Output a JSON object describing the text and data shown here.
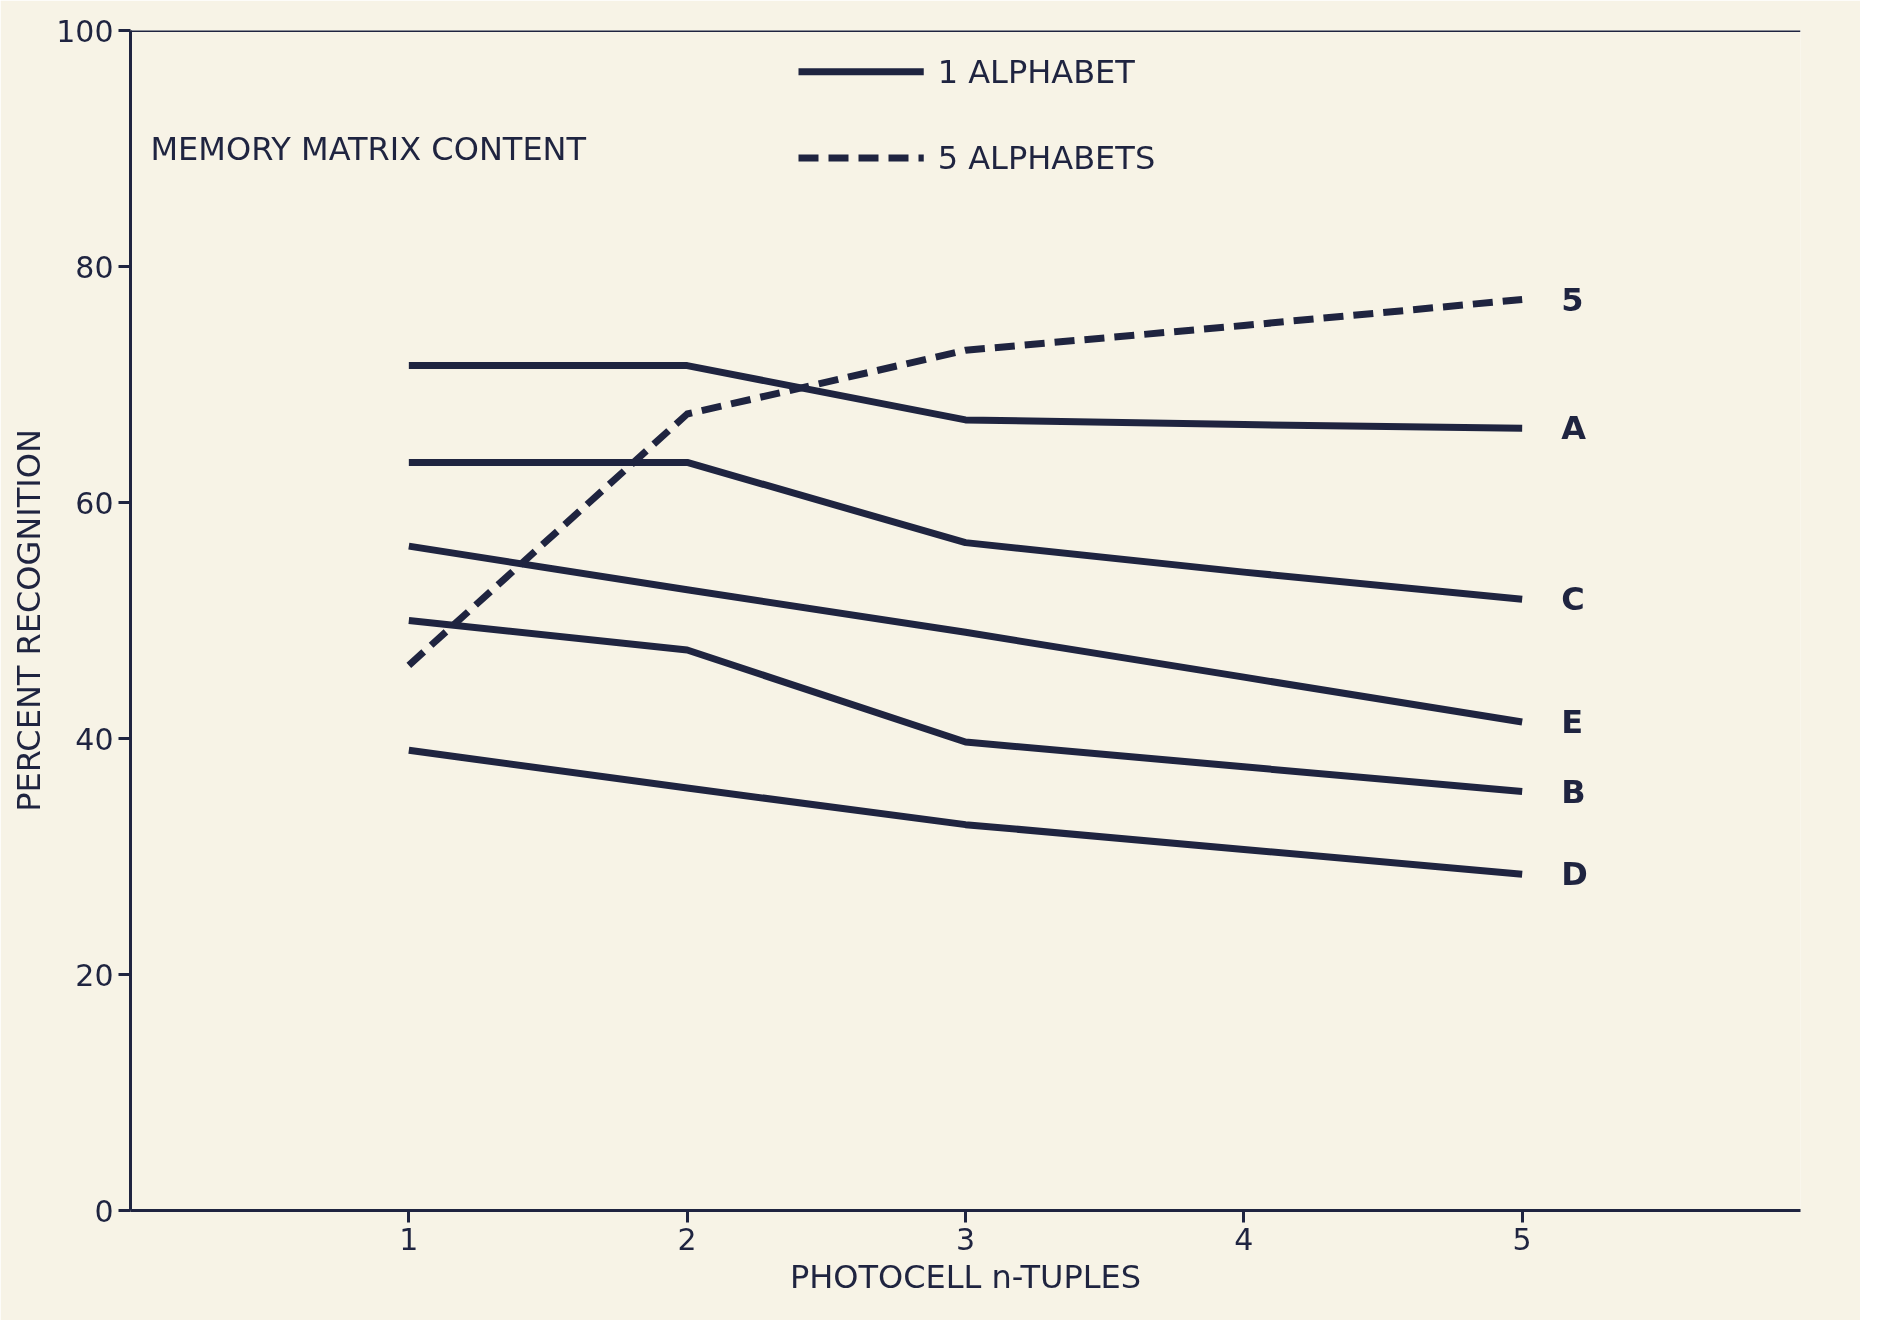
{
  "chart_data": {
    "type": "line",
    "xlabel": "PHOTOCELL n-TUPLES",
    "ylabel": "PERCENT RECOGNITION",
    "legend_title": "MEMORY MATRIX CONTENT",
    "annotations": [
      "1 ALPHABET",
      "5 ALPHABETS"
    ],
    "x": [
      1,
      2,
      3,
      4,
      5
    ],
    "xlim": [
      0,
      6
    ],
    "xticks": [
      1,
      2,
      3,
      4,
      5
    ],
    "ylim": [
      0,
      100
    ],
    "yticks": [
      0,
      20,
      40,
      60,
      80,
      100
    ],
    "grid": false,
    "marker": "none",
    "series": [
      {
        "name": "5",
        "color": "#1f2440",
        "line_style": "dashed",
        "values": [
          46.2,
          67.5,
          72.9,
          75.0,
          77.2
        ]
      },
      {
        "name": "A",
        "color": "#1f2440",
        "line_style": "solid",
        "values": [
          71.6,
          71.6,
          67.0,
          66.6,
          66.3
        ]
      },
      {
        "name": "C",
        "color": "#1f2440",
        "line_style": "solid",
        "values": [
          63.4,
          63.4,
          56.6,
          54.1,
          51.8
        ]
      },
      {
        "name": "E",
        "color": "#1f2440",
        "line_style": "solid",
        "values": [
          56.3,
          52.6,
          49.0,
          45.2,
          41.4
        ]
      },
      {
        "name": "B",
        "color": "#1f2440",
        "line_style": "solid",
        "values": [
          50.0,
          47.5,
          39.7,
          37.6,
          35.5
        ]
      },
      {
        "name": "D",
        "color": "#1f2440",
        "line_style": "solid",
        "values": [
          39.0,
          35.8,
          32.7,
          30.6,
          28.5
        ]
      }
    ]
  }
}
